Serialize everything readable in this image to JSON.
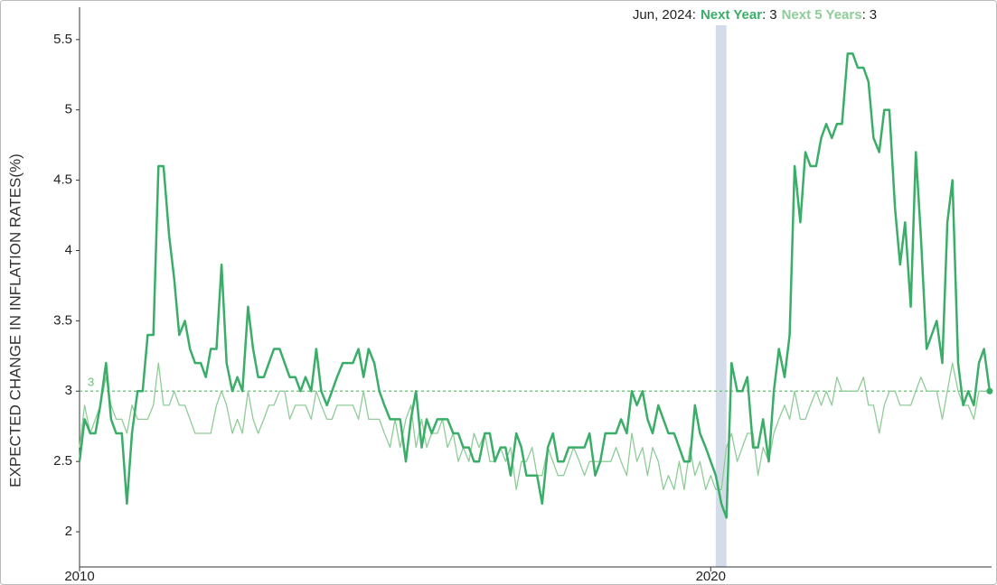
{
  "chart_data": {
    "type": "line",
    "y_label": "EXPECTED CHANGE IN INFLATION RATES(%)",
    "x": [
      2010,
      2010.08,
      2010.17,
      2010.25,
      2010.33,
      2010.42,
      2010.5,
      2010.58,
      2010.67,
      2010.75,
      2010.83,
      2010.92,
      2011,
      2011.08,
      2011.17,
      2011.25,
      2011.33,
      2011.42,
      2011.5,
      2011.58,
      2011.67,
      2011.75,
      2011.83,
      2011.92,
      2012,
      2012.08,
      2012.17,
      2012.25,
      2012.33,
      2012.42,
      2012.5,
      2012.58,
      2012.67,
      2012.75,
      2012.83,
      2012.92,
      2013,
      2013.08,
      2013.17,
      2013.25,
      2013.33,
      2013.42,
      2013.5,
      2013.58,
      2013.67,
      2013.75,
      2013.83,
      2013.92,
      2014,
      2014.08,
      2014.17,
      2014.25,
      2014.33,
      2014.42,
      2014.5,
      2014.58,
      2014.67,
      2014.75,
      2014.83,
      2014.92,
      2015,
      2015.08,
      2015.17,
      2015.25,
      2015.33,
      2015.42,
      2015.5,
      2015.58,
      2015.67,
      2015.75,
      2015.83,
      2015.92,
      2016,
      2016.08,
      2016.17,
      2016.25,
      2016.33,
      2016.42,
      2016.5,
      2016.58,
      2016.67,
      2016.75,
      2016.83,
      2016.92,
      2017,
      2017.08,
      2017.17,
      2017.25,
      2017.33,
      2017.42,
      2017.5,
      2017.58,
      2017.67,
      2017.75,
      2017.83,
      2017.92,
      2018,
      2018.08,
      2018.17,
      2018.25,
      2018.33,
      2018.42,
      2018.5,
      2018.58,
      2018.67,
      2018.75,
      2018.83,
      2018.92,
      2019,
      2019.08,
      2019.17,
      2019.25,
      2019.33,
      2019.42,
      2019.5,
      2019.58,
      2019.67,
      2019.75,
      2019.83,
      2019.92,
      2020,
      2020.08,
      2020.17,
      2020.25,
      2020.33,
      2020.42,
      2020.5,
      2020.58,
      2020.67,
      2020.75,
      2020.83,
      2020.92,
      2021,
      2021.08,
      2021.17,
      2021.25,
      2021.33,
      2021.42,
      2021.5,
      2021.58,
      2021.67,
      2021.75,
      2021.83,
      2021.92,
      2022,
      2022.08,
      2022.17,
      2022.25,
      2022.33,
      2022.42,
      2022.5,
      2022.58,
      2022.67,
      2022.75,
      2022.83,
      2022.92,
      2023,
      2023.08,
      2023.17,
      2023.25,
      2023.33,
      2023.42,
      2023.5,
      2023.58,
      2023.67,
      2023.75,
      2023.83,
      2023.92,
      2024,
      2024.08,
      2024.17,
      2024.25,
      2024.33,
      2024.42
    ],
    "series": [
      {
        "name": "Next Year",
        "color": "#3aae68",
        "width": 2.5,
        "values": [
          2.5,
          2.8,
          2.7,
          2.7,
          2.9,
          3.2,
          2.8,
          2.7,
          2.7,
          2.2,
          2.7,
          3.0,
          3.0,
          3.4,
          3.4,
          4.6,
          4.6,
          4.1,
          3.8,
          3.4,
          3.5,
          3.3,
          3.2,
          3.2,
          3.1,
          3.3,
          3.3,
          3.9,
          3.2,
          3.0,
          3.1,
          3.0,
          3.6,
          3.3,
          3.1,
          3.1,
          3.2,
          3.3,
          3.3,
          3.2,
          3.1,
          3.1,
          3.0,
          3.1,
          3.0,
          3.3,
          3.0,
          2.9,
          3.0,
          3.1,
          3.2,
          3.2,
          3.2,
          3.3,
          3.1,
          3.3,
          3.2,
          3.0,
          2.9,
          2.8,
          2.8,
          2.8,
          2.5,
          2.8,
          3.0,
          2.6,
          2.8,
          2.7,
          2.8,
          2.8,
          2.8,
          2.7,
          2.7,
          2.6,
          2.6,
          2.5,
          2.5,
          2.7,
          2.7,
          2.5,
          2.6,
          2.6,
          2.4,
          2.7,
          2.6,
          2.4,
          2.4,
          2.4,
          2.2,
          2.6,
          2.7,
          2.5,
          2.5,
          2.6,
          2.6,
          2.6,
          2.6,
          2.7,
          2.4,
          2.5,
          2.7,
          2.7,
          2.7,
          2.8,
          2.7,
          3.0,
          2.9,
          3.0,
          2.8,
          2.7,
          2.9,
          2.8,
          2.7,
          2.7,
          2.6,
          2.5,
          2.5,
          2.9,
          2.7,
          2.6,
          2.5,
          2.4,
          2.2,
          2.1,
          3.2,
          3.0,
          3.0,
          3.1,
          2.6,
          2.6,
          2.8,
          2.5,
          3.0,
          3.3,
          3.1,
          3.4,
          4.6,
          4.2,
          4.7,
          4.6,
          4.6,
          4.8,
          4.9,
          4.8,
          4.9,
          4.9,
          5.4,
          5.4,
          5.3,
          5.3,
          5.2,
          4.8,
          4.7,
          5.0,
          5.0,
          4.3,
          3.9,
          4.2,
          3.6,
          4.7,
          4.1,
          3.3,
          3.4,
          3.5,
          3.2,
          4.2,
          4.5,
          3.2,
          2.9,
          3.0,
          2.9,
          3.2,
          3.3,
          3.0
        ]
      },
      {
        "name": "Next 5 Years",
        "color": "#8fcc98",
        "width": 1.3,
        "values": [
          2.6,
          2.9,
          2.7,
          2.8,
          2.9,
          3.1,
          2.9,
          2.8,
          2.8,
          2.7,
          2.9,
          2.8,
          2.8,
          2.8,
          2.9,
          3.2,
          2.9,
          2.9,
          3.0,
          2.9,
          2.9,
          2.8,
          2.7,
          2.7,
          2.7,
          2.7,
          2.9,
          3.0,
          2.9,
          2.7,
          2.8,
          2.7,
          3.0,
          2.8,
          2.7,
          2.8,
          2.9,
          2.9,
          3.0,
          3.0,
          2.8,
          2.9,
          2.9,
          2.9,
          2.8,
          3.0,
          2.9,
          2.8,
          2.8,
          2.9,
          2.9,
          2.9,
          2.9,
          2.8,
          3.0,
          2.8,
          2.8,
          2.8,
          2.7,
          2.6,
          2.8,
          2.6,
          2.8,
          2.9,
          2.6,
          2.8,
          2.6,
          2.7,
          2.7,
          2.8,
          2.6,
          2.7,
          2.5,
          2.6,
          2.5,
          2.7,
          2.6,
          2.7,
          2.5,
          2.5,
          2.6,
          2.5,
          2.6,
          2.3,
          2.5,
          2.5,
          2.6,
          2.4,
          2.4,
          2.6,
          2.5,
          2.4,
          2.4,
          2.5,
          2.6,
          2.5,
          2.4,
          2.5,
          2.5,
          2.5,
          2.5,
          2.5,
          2.6,
          2.5,
          2.4,
          2.7,
          2.5,
          2.6,
          2.4,
          2.6,
          2.5,
          2.3,
          2.4,
          2.3,
          2.5,
          2.3,
          2.6,
          2.4,
          2.5,
          2.3,
          2.4,
          2.3,
          2.3,
          2.6,
          2.7,
          2.5,
          2.6,
          2.7,
          2.7,
          2.4,
          2.6,
          2.5,
          2.7,
          2.8,
          2.9,
          2.8,
          3.0,
          2.8,
          2.8,
          2.9,
          3.0,
          2.9,
          3.0,
          2.9,
          3.1,
          3.0,
          3.0,
          3.0,
          3.0,
          3.1,
          2.9,
          2.9,
          2.7,
          2.9,
          3.0,
          3.0,
          2.9,
          2.9,
          2.9,
          3.0,
          3.1,
          3.0,
          3.0,
          3.0,
          2.8,
          3.0,
          3.2,
          3.0,
          2.9,
          2.9,
          2.8,
          3.0,
          3.0,
          3.0
        ]
      }
    ],
    "xlim": [
      2010,
      2024.45
    ],
    "xticks": [
      2010,
      2020
    ],
    "ylim": [
      1.75,
      5.73
    ],
    "yticks": [
      2,
      2.5,
      3,
      3.5,
      4,
      4.5,
      5,
      5.5
    ],
    "reference_line": {
      "value": 3,
      "color": "#6dbb7a"
    },
    "recession": {
      "x": [
        2020.08,
        2020.25
      ],
      "color": "#d3dce8"
    },
    "tooltip": {
      "date": "Jun, 2024",
      "separator": ":"
    }
  }
}
